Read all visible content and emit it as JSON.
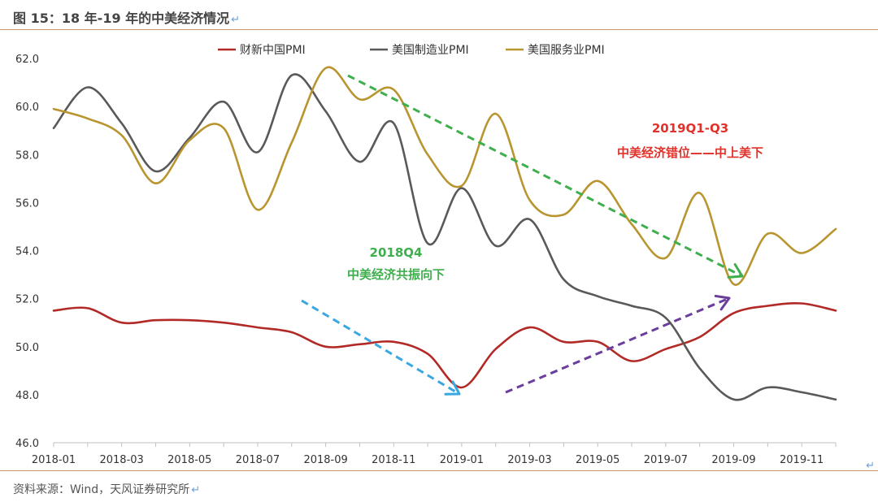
{
  "header": {
    "title": "图 15：18 年-19 年的中美经济情况",
    "return_mark": "↵"
  },
  "footer": {
    "source": "资料来源：Wind，天风证券研究所",
    "return_mark": "↵"
  },
  "chart_data": {
    "type": "line",
    "x": [
      "2018-01",
      "2018-02",
      "2018-03",
      "2018-04",
      "2018-05",
      "2018-06",
      "2018-07",
      "2018-08",
      "2018-09",
      "2018-10",
      "2018-11",
      "2018-12",
      "2019-01",
      "2019-02",
      "2019-03",
      "2019-04",
      "2019-05",
      "2019-06",
      "2019-07",
      "2019-08",
      "2019-09",
      "2019-10",
      "2019-11",
      "2019-12"
    ],
    "xticks": [
      "2018-01",
      "2018-03",
      "2018-05",
      "2018-07",
      "2018-09",
      "2018-11",
      "2019-01",
      "2019-03",
      "2019-05",
      "2019-07",
      "2019-09",
      "2019-11"
    ],
    "ylim": [
      46,
      62
    ],
    "yticks": [
      "46.0",
      "48.0",
      "50.0",
      "52.0",
      "54.0",
      "56.0",
      "58.0",
      "60.0",
      "62.0"
    ],
    "legend_position": "top",
    "series": [
      {
        "name": "财新中国PMI",
        "color": "#b22a26",
        "values": [
          51.5,
          51.6,
          51.0,
          51.1,
          51.1,
          51.0,
          50.8,
          50.6,
          50.0,
          50.1,
          50.2,
          49.7,
          48.3,
          49.9,
          50.8,
          50.2,
          50.2,
          49.4,
          49.9,
          50.4,
          51.4,
          51.7,
          51.8,
          51.5
        ]
      },
      {
        "name": "美国制造业PMI",
        "color": "#595959",
        "values": [
          59.1,
          60.8,
          59.3,
          57.3,
          58.7,
          60.2,
          58.1,
          61.3,
          59.8,
          57.7,
          59.3,
          54.3,
          56.6,
          54.2,
          55.3,
          52.8,
          52.1,
          51.7,
          51.2,
          49.1,
          47.8,
          48.3,
          48.1,
          47.8
        ]
      },
      {
        "name": "美国服务业PMI",
        "color": "#b8952f",
        "values": [
          59.9,
          59.5,
          58.8,
          56.8,
          58.6,
          59.1,
          55.7,
          58.5,
          61.6,
          60.3,
          60.7,
          58.0,
          56.7,
          59.7,
          56.1,
          55.5,
          56.9,
          55.1,
          53.7,
          56.4,
          52.6,
          54.7,
          53.9,
          54.9
        ]
      }
    ],
    "annotations": [
      {
        "title": "2018Q4",
        "text": "中美经济共振向下",
        "color": "#3fae4d"
      },
      {
        "title": "2019Q1-Q3",
        "text": "中美经济错位——中上美下",
        "color": "#e0322b"
      }
    ],
    "arrows": [
      {
        "label": "blue",
        "color": "#3aa8e0"
      },
      {
        "label": "purple",
        "color": "#6a3e9c"
      },
      {
        "label": "green",
        "color": "#3fae4d"
      }
    ]
  }
}
